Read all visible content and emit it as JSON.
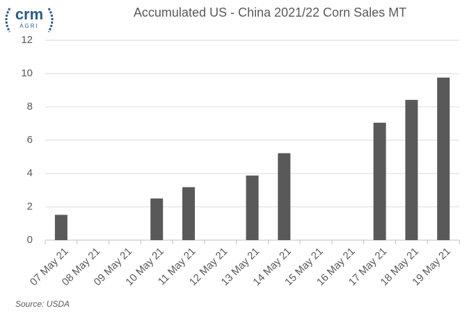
{
  "logo": {
    "name": "crm",
    "sub": "AGRI"
  },
  "chart_data": {
    "type": "bar",
    "title": "Accumulated US - China 2021/22 Corn Sales MT",
    "categories": [
      "07 May 21",
      "08 May 21",
      "09 May 21",
      "10 May 21",
      "11 May 21",
      "12 May 21",
      "13 May 21",
      "14 May 21",
      "15 May 21",
      "16 May 21",
      "17 May 21",
      "18 May 21",
      "19 May 21"
    ],
    "values": [
      1.52,
      null,
      null,
      2.5,
      3.18,
      null,
      3.88,
      5.22,
      null,
      null,
      7.05,
      8.42,
      9.76
    ],
    "color": "#595959",
    "ylim": [
      0,
      12
    ],
    "yticks": [
      0,
      2,
      4,
      6,
      8,
      10,
      12
    ],
    "grid": true,
    "source": "Source: USDA"
  }
}
